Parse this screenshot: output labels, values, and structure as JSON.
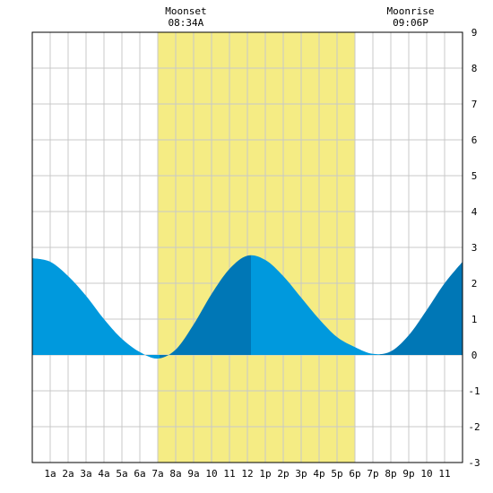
{
  "chart_data": {
    "type": "area",
    "title": "",
    "xlabel": "",
    "ylabel": "",
    "x_range": [
      0,
      24
    ],
    "ylim": [
      -3,
      9
    ],
    "y_ticks": [
      -3,
      -2,
      -1,
      0,
      1,
      2,
      3,
      4,
      5,
      6,
      7,
      8,
      9
    ],
    "x_tick_labels": [
      {
        "hour": 1,
        "label": "1a"
      },
      {
        "hour": 2,
        "label": "2a"
      },
      {
        "hour": 3,
        "label": "3a"
      },
      {
        "hour": 4,
        "label": "4a"
      },
      {
        "hour": 5,
        "label": "5a"
      },
      {
        "hour": 6,
        "label": "6a"
      },
      {
        "hour": 7,
        "label": "7a"
      },
      {
        "hour": 8,
        "label": "8a"
      },
      {
        "hour": 9,
        "label": "9a"
      },
      {
        "hour": 10,
        "label": "10"
      },
      {
        "hour": 11,
        "label": "11"
      },
      {
        "hour": 12,
        "label": "12"
      },
      {
        "hour": 13,
        "label": "1p"
      },
      {
        "hour": 14,
        "label": "2p"
      },
      {
        "hour": 15,
        "label": "3p"
      },
      {
        "hour": 16,
        "label": "4p"
      },
      {
        "hour": 17,
        "label": "5p"
      },
      {
        "hour": 18,
        "label": "6p"
      },
      {
        "hour": 19,
        "label": "7p"
      },
      {
        "hour": 20,
        "label": "8p"
      },
      {
        "hour": 21,
        "label": "9p"
      },
      {
        "hour": 22,
        "label": "10"
      },
      {
        "hour": 23,
        "label": "11"
      }
    ],
    "grid": true,
    "daylight": {
      "start": 7.0,
      "end": 18.0,
      "color": "#f5ec84"
    },
    "annotations": [
      {
        "label": "Moonset",
        "time": "08:34A",
        "hour": 8.57
      },
      {
        "label": "Moonrise",
        "time": "09:06P",
        "hour": 21.1
      }
    ],
    "tide_extremes": [
      {
        "hour": 0.0,
        "height": 2.7
      },
      {
        "hour": 7.1,
        "height": -0.1
      },
      {
        "hour": 12.2,
        "height": 2.78
      },
      {
        "hour": 19.4,
        "height": 0.02
      },
      {
        "hour": 24.0,
        "height": 2.6
      }
    ],
    "series": [
      {
        "values": [
          [
            0,
            2.7
          ],
          [
            1,
            2.6
          ],
          [
            2,
            2.2
          ],
          [
            3,
            1.65
          ],
          [
            4,
            1.0
          ],
          [
            5,
            0.45
          ],
          [
            6,
            0.08
          ],
          [
            7,
            -0.1
          ],
          [
            8,
            0.15
          ],
          [
            9,
            0.85
          ],
          [
            10,
            1.7
          ],
          [
            11,
            2.4
          ],
          [
            12,
            2.77
          ],
          [
            13,
            2.65
          ],
          [
            14,
            2.2
          ],
          [
            15,
            1.6
          ],
          [
            16,
            1.0
          ],
          [
            17,
            0.5
          ],
          [
            18,
            0.22
          ],
          [
            19,
            0.03
          ],
          [
            20,
            0.1
          ],
          [
            21,
            0.55
          ],
          [
            22,
            1.25
          ],
          [
            23,
            2.0
          ],
          [
            24,
            2.6
          ]
        ]
      }
    ],
    "colors": {
      "fill_light": "#0099dd",
      "fill_dark": "#0077b6",
      "daylight": "#f5ec84",
      "grid": "#c8c8c8"
    }
  }
}
